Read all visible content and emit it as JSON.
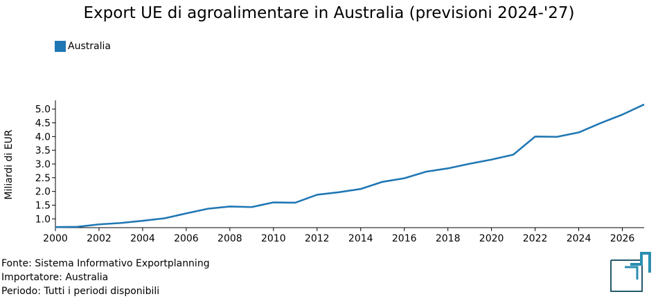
{
  "chart_data": {
    "type": "line",
    "title": "Export UE di agroalimentare in Australia (previsioni 2024-'27)",
    "xlabel": "",
    "ylabel": "Miliardi di EUR",
    "xlim": [
      2000,
      2027
    ],
    "ylim": [
      0.68,
      5.32
    ],
    "grid": false,
    "legend_position": "top-left",
    "x_ticks": [
      2000,
      2002,
      2004,
      2006,
      2008,
      2010,
      2012,
      2014,
      2016,
      2018,
      2020,
      2022,
      2024,
      2026
    ],
    "x_tick_labels": [
      "2000",
      "2002",
      "2004",
      "2006",
      "2008",
      "2010",
      "2012",
      "2014",
      "2016",
      "2018",
      "2020",
      "2022",
      "2024",
      "2026"
    ],
    "y_ticks": [
      1.0,
      1.5,
      2.0,
      2.5,
      3.0,
      3.5,
      4.0,
      4.5,
      5.0
    ],
    "y_tick_labels": [
      "1.0",
      "1.5",
      "2.0",
      "2.5",
      "3.0",
      "3.5",
      "4.0",
      "4.5",
      "5.0"
    ],
    "series": [
      {
        "name": "Australia",
        "color": "#1f77b4",
        "x": [
          2000,
          2001,
          2002,
          2003,
          2004,
          2005,
          2006,
          2007,
          2008,
          2009,
          2010,
          2011,
          2012,
          2013,
          2014,
          2015,
          2016,
          2017,
          2018,
          2019,
          2020,
          2021,
          2022,
          2023,
          2024,
          2025,
          2026,
          2027
        ],
        "y": [
          0.7,
          0.71,
          0.8,
          0.85,
          0.93,
          1.02,
          1.2,
          1.37,
          1.45,
          1.43,
          1.6,
          1.59,
          1.88,
          1.97,
          2.09,
          2.35,
          2.48,
          2.72,
          2.84,
          3.01,
          3.16,
          3.34,
          4.0,
          3.99,
          4.15,
          4.49,
          4.8,
          5.17
        ]
      }
    ]
  },
  "footer": {
    "source": "Fonte: Sistema Informativo Exportplanning",
    "importer": "Importatore: Australia",
    "period": "Periodo: Tutti i periodi disponibili"
  },
  "logo": {
    "icon": "exportplanning-logo-icon",
    "colors": [
      "#2a8fb0",
      "#24586a"
    ]
  }
}
